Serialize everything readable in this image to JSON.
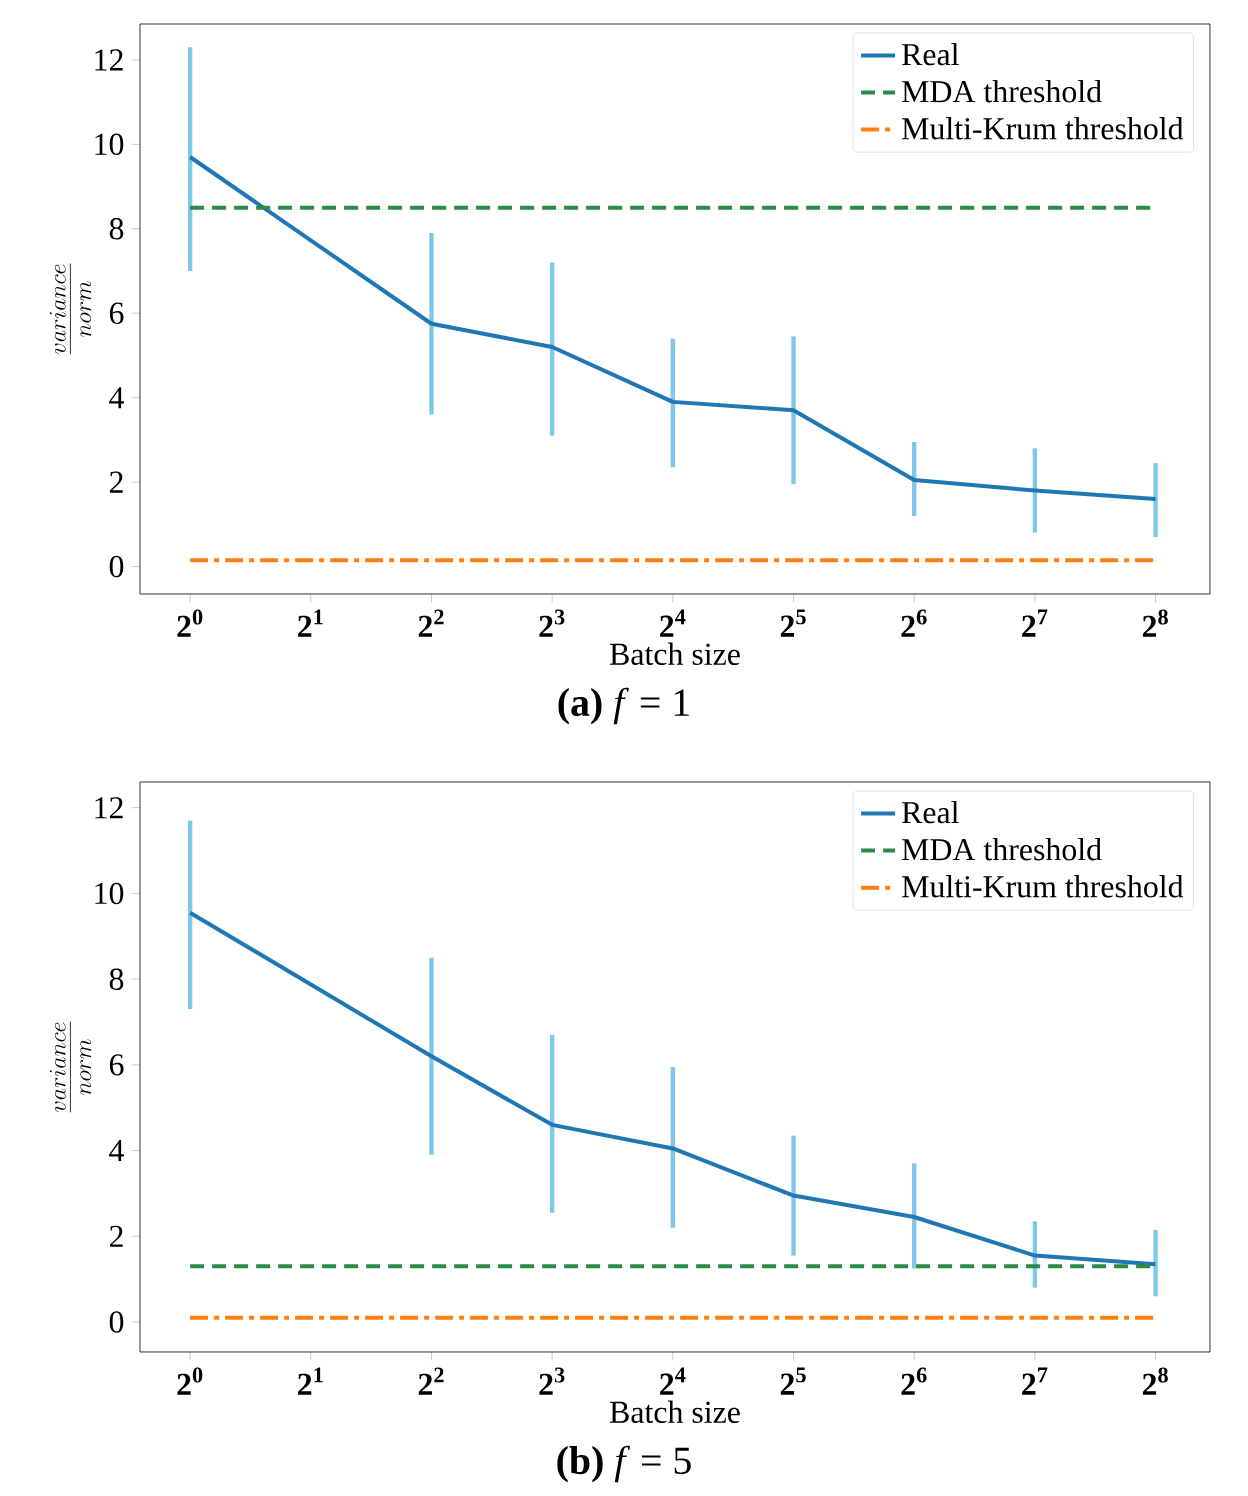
{
  "chart_data": [
    {
      "type": "line",
      "xlabel": "Batch size",
      "ylabel": "\\frac{variance}{norm}",
      "log": "x",
      "xlim": [
        0.75,
        350
      ],
      "ylim": [
        -0.65,
        12.85
      ],
      "xticks": [
        {
          "value": 1,
          "label": "2$^{0}$"
        },
        {
          "value": 2,
          "label": "2$^{1}$"
        },
        {
          "value": 4,
          "label": "2$^{2}$"
        },
        {
          "value": 8,
          "label": "2$^{3}$"
        },
        {
          "value": 16,
          "label": "2$^{4}$"
        },
        {
          "value": 32,
          "label": "2$^{5}$"
        },
        {
          "value": 64,
          "label": "2$^{6}$"
        },
        {
          "value": 128,
          "label": "2$^{7}$"
        },
        {
          "value": 256,
          "label": "2$^{8}$"
        }
      ],
      "yticks": [
        0,
        2,
        4,
        6,
        8,
        10,
        12
      ],
      "legend": "top right",
      "grid": false,
      "annotations": [
        "**(a)** *f* = 1"
      ],
      "series": [
        {
          "name": "Real",
          "color": "#1f77b4",
          "line_style": "solid",
          "x": [
            1,
            4,
            8,
            16,
            32,
            64,
            128,
            256
          ],
          "values": [
            9.7,
            5.75,
            5.2,
            3.9,
            3.7,
            2.05,
            1.8,
            1.6
          ],
          "errors": [
            [
              7.0,
              12.3
            ],
            [
              3.6,
              7.9
            ],
            [
              3.1,
              7.2
            ],
            [
              2.35,
              5.4
            ],
            [
              1.95,
              5.45
            ],
            [
              1.2,
              2.95
            ],
            [
              0.8,
              2.8
            ],
            [
              0.7,
              2.45
            ]
          ]
        },
        {
          "name": "MDA threshold",
          "color": "#2a8a4a",
          "line_style": "dashed",
          "x": [
            1,
            256
          ],
          "values": [
            8.5,
            8.5
          ]
        },
        {
          "name": "Multi-Krum threshold",
          "color": "#ff7f0e",
          "line_style": "dashdot",
          "x": [
            1,
            256
          ],
          "values": [
            0.15,
            0.15
          ]
        }
      ]
    },
    {
      "type": "line",
      "xlabel": "Batch size",
      "ylabel": "\\frac{variance}{norm}",
      "log": "x",
      "xlim": [
        0.75,
        350
      ],
      "ylim": [
        -0.7,
        12.6
      ],
      "xticks": [
        {
          "value": 1,
          "label": "2$^{0}$"
        },
        {
          "value": 2,
          "label": "2$^{1}$"
        },
        {
          "value": 4,
          "label": "2$^{2}$"
        },
        {
          "value": 8,
          "label": "2$^{3}$"
        },
        {
          "value": 16,
          "label": "2$^{4}$"
        },
        {
          "value": 32,
          "label": "2$^{5}$"
        },
        {
          "value": 64,
          "label": "2$^{6}$"
        },
        {
          "value": 128,
          "label": "2$^{7}$"
        },
        {
          "value": 256,
          "label": "2$^{8}$"
        }
      ],
      "yticks": [
        0,
        2,
        4,
        6,
        8,
        10,
        12
      ],
      "legend": "top right",
      "grid": false,
      "annotations": [
        "**(b)** *f* = 5"
      ],
      "series": [
        {
          "name": "Real",
          "color": "#1f77b4",
          "line_style": "solid",
          "x": [
            1,
            4,
            8,
            16,
            32,
            64,
            128,
            256
          ],
          "values": [
            9.55,
            6.2,
            4.6,
            4.05,
            2.95,
            2.45,
            1.55,
            1.35
          ],
          "errors": [
            [
              7.3,
              11.7
            ],
            [
              3.9,
              8.5
            ],
            [
              2.55,
              6.7
            ],
            [
              2.2,
              5.95
            ],
            [
              1.55,
              4.35
            ],
            [
              1.25,
              3.7
            ],
            [
              0.8,
              2.35
            ],
            [
              0.6,
              2.15
            ]
          ]
        },
        {
          "name": "MDA threshold",
          "color": "#2a8a4a",
          "line_style": "dashed",
          "x": [
            1,
            256
          ],
          "values": [
            1.3,
            1.3
          ]
        },
        {
          "name": "Multi-Krum threshold",
          "color": "#ff7f0e",
          "line_style": "dashdot",
          "x": [
            1,
            256
          ],
          "values": [
            0.1,
            0.1
          ]
        }
      ]
    }
  ]
}
